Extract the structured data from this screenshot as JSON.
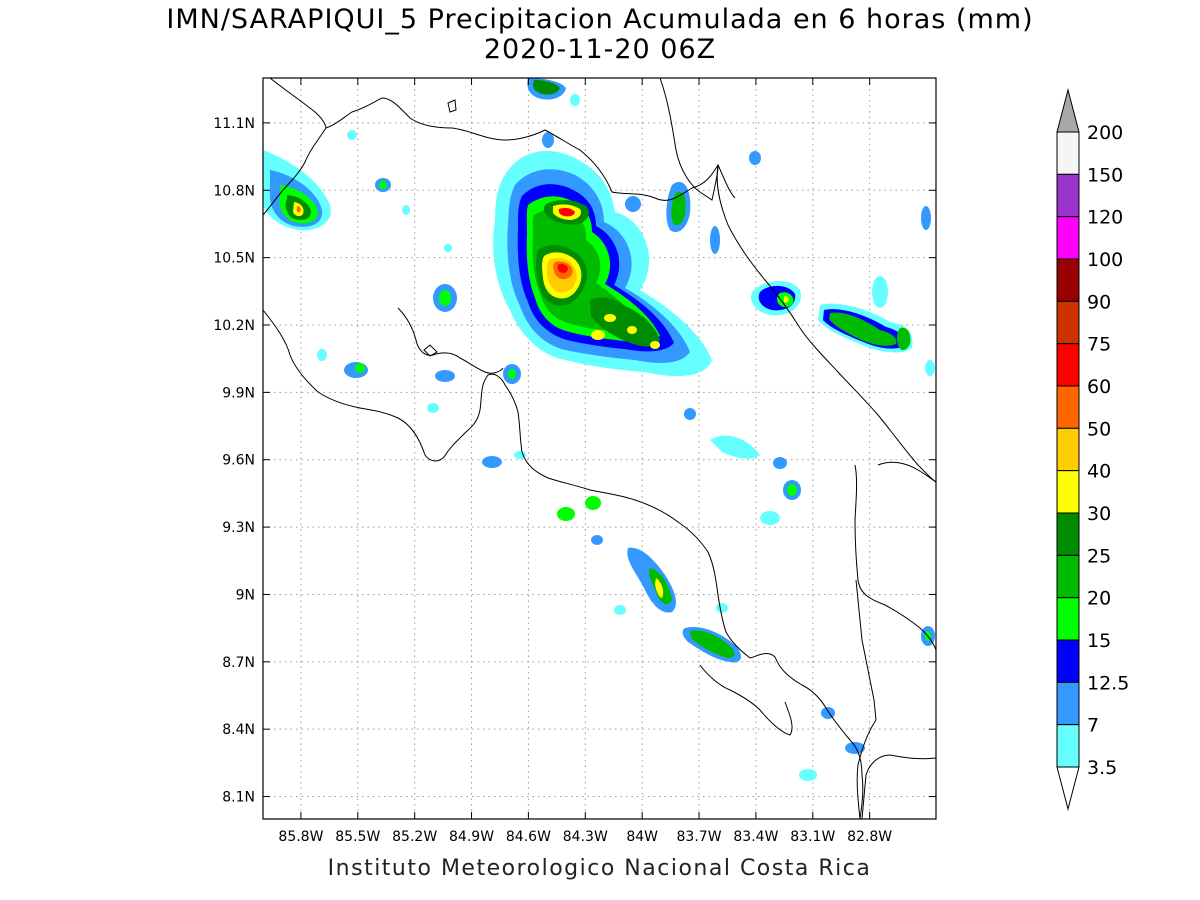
{
  "title": {
    "line1": "IMN/SARAPIQUI_5 Precipitacion Acumulada en 6 horas (mm)",
    "line2": "2020-11-20 06Z"
  },
  "footer": "Instituto Meteorologico Nacional Costa Rica",
  "map": {
    "lon_range": [
      -86.0,
      -82.45
    ],
    "lat_range": [
      8.0,
      11.3
    ],
    "lat_ticks": [
      "11.1N",
      "10.8N",
      "10.5N",
      "10.2N",
      "9.9N",
      "9.6N",
      "9.3N",
      "9N",
      "8.7N",
      "8.4N",
      "8.1N"
    ],
    "lat_values": [
      11.1,
      10.8,
      10.5,
      10.2,
      9.9,
      9.6,
      9.3,
      9.0,
      8.7,
      8.4,
      8.1
    ],
    "lon_ticks": [
      "85.8W",
      "85.5W",
      "85.2W",
      "84.9W",
      "84.6W",
      "84.3W",
      "84W",
      "83.7W",
      "83.4W",
      "83.1W",
      "82.8W"
    ],
    "lon_values": [
      -85.8,
      -85.5,
      -85.2,
      -84.9,
      -84.6,
      -84.3,
      -84.0,
      -83.7,
      -83.4,
      -83.1,
      -82.8
    ],
    "grid": "dotted"
  },
  "colorbar": {
    "labels": [
      "200",
      "150",
      "120",
      "100",
      "90",
      "75",
      "60",
      "50",
      "40",
      "30",
      "25",
      "20",
      "15",
      "12.5",
      "7",
      "3.5"
    ],
    "colors": [
      "#f5f5f5",
      "#9933cc",
      "#ff00ff",
      "#990000",
      "#cc3300",
      "#ff0000",
      "#ff6600",
      "#ffcc00",
      "#ffff00",
      "#008c00",
      "#00bb00",
      "#00ff00",
      "#0000ff",
      "#3399ff",
      "#66ffff"
    ],
    "over_color": "#a8a8a8",
    "under_color": "#ffffff"
  }
}
